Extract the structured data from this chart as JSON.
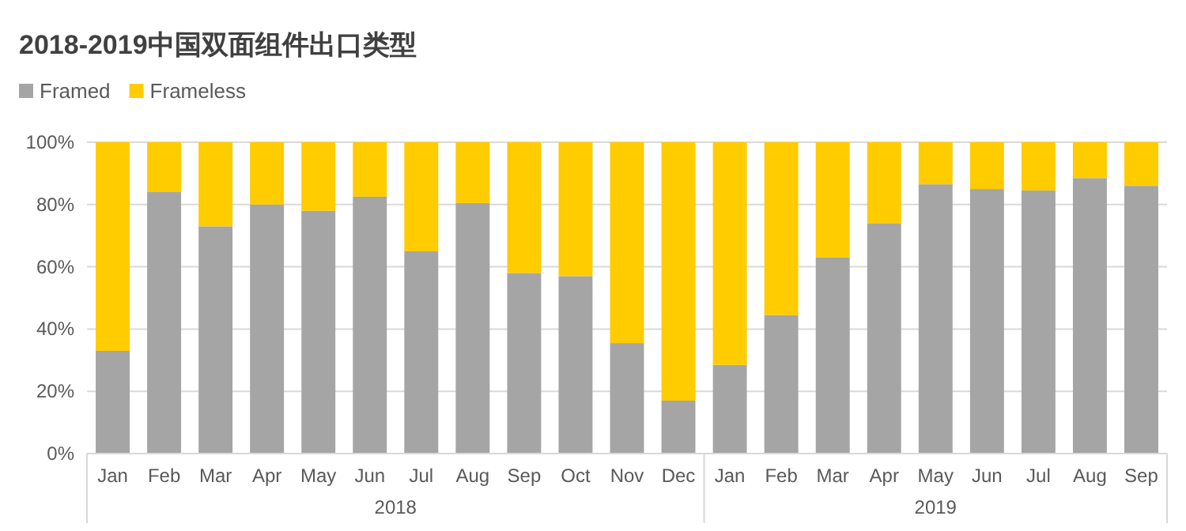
{
  "chart_data": {
    "type": "bar",
    "title": "2018-2019中国双面组件出口类型",
    "stacked": true,
    "categories": [
      "Jan",
      "Feb",
      "Mar",
      "Apr",
      "May",
      "Jun",
      "Jul",
      "Aug",
      "Sep",
      "Oct",
      "Nov",
      "Dec",
      "Jan",
      "Feb",
      "Mar",
      "Apr",
      "May",
      "Jun",
      "Jul",
      "Aug",
      "Sep"
    ],
    "series": [
      {
        "name": "Framed",
        "color": "#a5a5a5",
        "values": [
          33,
          84,
          73,
          80,
          78,
          82.5,
          65,
          80.5,
          58,
          57,
          35.5,
          17,
          28.5,
          44.5,
          63,
          74,
          86.5,
          85,
          84.5,
          88.5,
          86
        ]
      },
      {
        "name": "Frameless",
        "color": "#ffcc00",
        "values": [
          67,
          16,
          27,
          20,
          22,
          17.5,
          35,
          19.5,
          42,
          43,
          64.5,
          83,
          71.5,
          55.5,
          37,
          26,
          13.5,
          15,
          15.5,
          11.5,
          14
        ]
      }
    ],
    "ylim": [
      0,
      100
    ],
    "yticks": [
      {
        "value": 0,
        "label": "0%"
      },
      {
        "value": 20,
        "label": "20%"
      },
      {
        "value": 40,
        "label": "40%"
      },
      {
        "value": 60,
        "label": "60%"
      },
      {
        "value": 80,
        "label": "80%"
      },
      {
        "value": 100,
        "label": "100%"
      }
    ],
    "grid": "y",
    "legend": "top left",
    "annotations": [
      "2018",
      "2019"
    ]
  }
}
